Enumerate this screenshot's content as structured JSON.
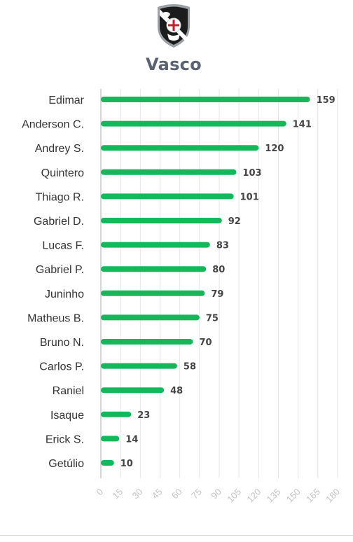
{
  "team": {
    "name": "Vasco",
    "crest_icon": "vasco-crest-icon"
  },
  "colors": {
    "bar": "#14b85a",
    "title": "#5a6372",
    "label": "#333333",
    "value": "#444444",
    "grid": "#e4e6ea",
    "axis": "#c8ccd4",
    "tick": "#c4c4c4"
  },
  "chart_data": {
    "type": "bar",
    "orientation": "horizontal",
    "title": "Vasco",
    "categories": [
      "Edimar",
      "Anderson C.",
      "Andrey S.",
      "Quintero",
      "Thiago R.",
      "Gabriel D.",
      "Lucas F.",
      "Gabriel P.",
      "Juninho",
      "Matheus B.",
      "Bruno N.",
      "Carlos P.",
      "Raniel",
      "Isaque",
      "Erick S.",
      "Getúlio"
    ],
    "values": [
      159,
      141,
      120,
      103,
      101,
      92,
      83,
      80,
      79,
      75,
      70,
      58,
      48,
      23,
      14,
      10
    ],
    "xlim": [
      0,
      180
    ],
    "xticks": [
      0,
      15,
      30,
      45,
      60,
      75,
      90,
      105,
      120,
      135,
      150,
      165,
      180
    ],
    "grid": true,
    "xlabel": "",
    "ylabel": ""
  }
}
